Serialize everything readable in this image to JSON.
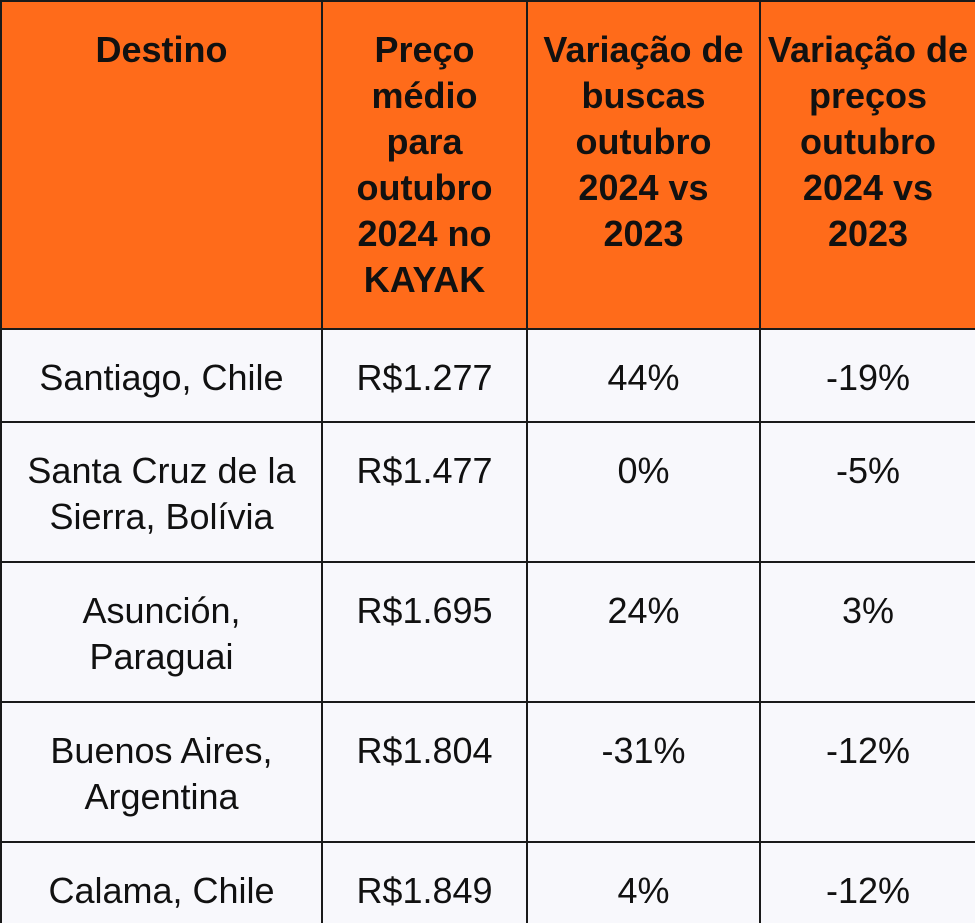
{
  "table": {
    "header": {
      "destination": "Destino",
      "avg_price": "Preço médio para outubro 2024 no KAYAK",
      "search_change": "Variação de buscas outubro 2024 vs 2023",
      "price_change": "Variação de preços outubro 2024 vs 2023"
    },
    "header_color": "#ff6b1a",
    "rows": [
      {
        "destination": "Santiago, Chile",
        "avg_price": "R$1.277",
        "search_change": "44%",
        "price_change": "-19%"
      },
      {
        "destination": "Santa Cruz de la Sierra, Bolívia",
        "avg_price": "R$1.477",
        "search_change": "0%",
        "price_change": "-5%"
      },
      {
        "destination": "Asunción, Paraguai",
        "avg_price": "R$1.695",
        "search_change": "24%",
        "price_change": "3%"
      },
      {
        "destination": "Buenos Aires, Argentina",
        "avg_price": "R$1.804",
        "search_change": "-31%",
        "price_change": "-12%"
      },
      {
        "destination": "Calama, Chile",
        "avg_price": "R$1.849",
        "search_change": "4%",
        "price_change": "-12%"
      }
    ]
  }
}
